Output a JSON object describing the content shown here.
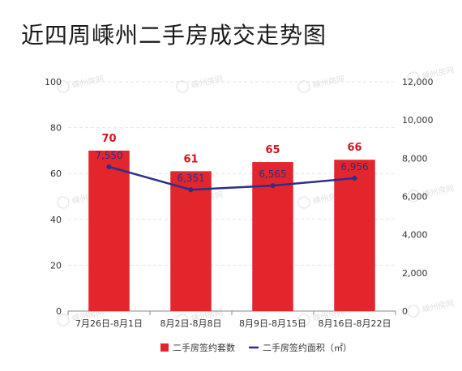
{
  "title": "近四周嵊州二手房成交走势图",
  "colors": {
    "bar": "#e3252c",
    "bar_label": "#d3141d",
    "line": "#2c2f8c",
    "grid": "#e3e3e3",
    "axis": "#888888"
  },
  "watermark": "嵊州房网",
  "chart_data": {
    "type": "bar",
    "title": "近四周嵊州二手房成交走势图",
    "categories": [
      "7月26日-8月1日",
      "8月2日-8月8日",
      "8月9日-8月15日",
      "8月16日-8月22日"
    ],
    "series": [
      {
        "name": "二手房签约套数",
        "type": "bar",
        "axis": "left",
        "values": [
          70,
          61,
          65,
          66
        ],
        "labels": [
          "70",
          "61",
          "65",
          "66"
        ]
      },
      {
        "name": "二手房签约面积（㎡）",
        "type": "line",
        "axis": "right",
        "values": [
          7550,
          6351,
          6565,
          6956
        ],
        "labels": [
          "7,550",
          "6,351",
          "6,565",
          "6,956"
        ]
      }
    ],
    "y_left": {
      "min": 0,
      "max": 100,
      "ticks": [
        0,
        20,
        40,
        60,
        80,
        100
      ],
      "tick_labels": [
        "0",
        "20",
        "40",
        "60",
        "80",
        "100"
      ]
    },
    "y_right": {
      "min": 0,
      "max": 12000,
      "ticks": [
        0,
        2000,
        4000,
        6000,
        8000,
        10000,
        12000
      ],
      "tick_labels": [
        "0",
        "2,000",
        "4,000",
        "6,000",
        "8,000",
        "10,000",
        "12,000"
      ]
    },
    "grid": true,
    "grid_style": "dashed",
    "legend_position": "bottom"
  }
}
